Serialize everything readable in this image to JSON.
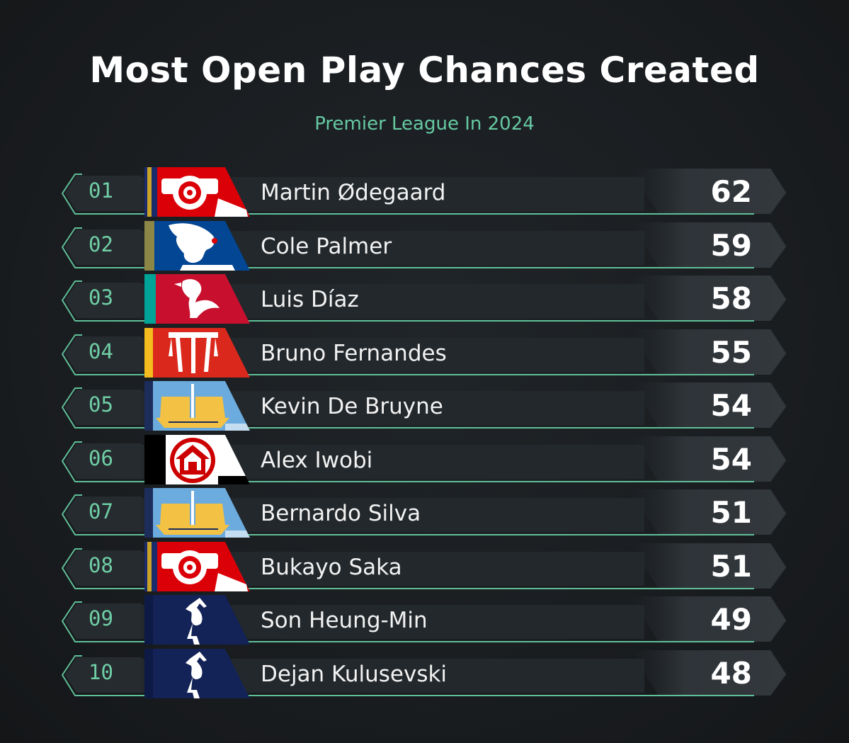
{
  "title": "Most Open Play Chances Created",
  "subtitle": "Premier League In 2024",
  "colors": {
    "accent": "#66c9a2",
    "row_bg": "#23282c",
    "value_bg": "#2f3439"
  },
  "chart_data": {
    "type": "bar",
    "title": "Most Open Play Chances Created",
    "subtitle": "Premier League In 2024",
    "categories": [
      "Martin Ødegaard",
      "Cole Palmer",
      "Luis Díaz",
      "Bruno Fernandes",
      "Kevin De Bruyne",
      "Alex Iwobi",
      "Bernardo Silva",
      "Bukayo Saka",
      "Son Heung-Min",
      "Dejan Kulusevski"
    ],
    "values": [
      62,
      59,
      58,
      55,
      54,
      54,
      51,
      51,
      49,
      48
    ]
  },
  "rows": [
    {
      "rank": "01",
      "name": "Martin Ødegaard",
      "value": "62",
      "club_icon": "arsenal-crest-icon"
    },
    {
      "rank": "02",
      "name": "Cole Palmer",
      "value": "59",
      "club_icon": "chelsea-crest-icon"
    },
    {
      "rank": "03",
      "name": "Luis Díaz",
      "value": "58",
      "club_icon": "liverpool-crest-icon"
    },
    {
      "rank": "04",
      "name": "Bruno Fernandes",
      "value": "55",
      "club_icon": "man-united-crest-icon"
    },
    {
      "rank": "05",
      "name": "Kevin De Bruyne",
      "value": "54",
      "club_icon": "man-city-crest-icon"
    },
    {
      "rank": "06",
      "name": "Alex Iwobi",
      "value": "54",
      "club_icon": "fulham-crest-icon"
    },
    {
      "rank": "07",
      "name": "Bernardo Silva",
      "value": "51",
      "club_icon": "man-city-crest-icon"
    },
    {
      "rank": "08",
      "name": "Bukayo Saka",
      "value": "51",
      "club_icon": "arsenal-crest-icon"
    },
    {
      "rank": "09",
      "name": "Son Heung-Min",
      "value": "49",
      "club_icon": "tottenham-crest-icon"
    },
    {
      "rank": "10",
      "name": "Dejan Kulusevski",
      "value": "48",
      "club_icon": "tottenham-crest-icon"
    }
  ]
}
